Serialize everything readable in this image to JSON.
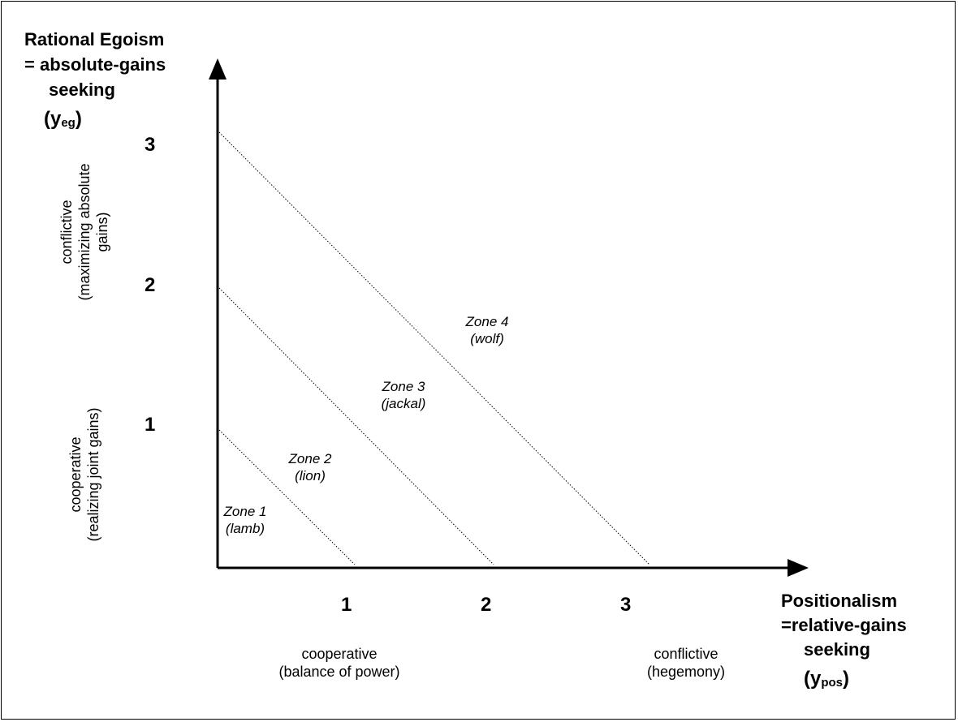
{
  "y_axis": {
    "title_lines": [
      "Rational Egoism",
      "= absolute-gains",
      "seeking"
    ],
    "symbol_main": "(y",
    "symbol_sub": "eg",
    "symbol_close": ")",
    "ticks": [
      "1",
      "2",
      "3"
    ],
    "lower_desc": [
      "cooperative",
      "(realizing joint gains)"
    ],
    "upper_desc": [
      "conflictive",
      "(maximizing absolute",
      "gains)"
    ]
  },
  "x_axis": {
    "title_lines": [
      "Positionalism",
      "=relative-gains",
      "seeking"
    ],
    "symbol_main": "(y",
    "symbol_sub": "pos",
    "symbol_close": ")",
    "ticks": [
      "1",
      "2",
      "3"
    ],
    "left_desc": [
      "cooperative",
      "(balance of power)"
    ],
    "right_desc": [
      "conflictive",
      "(hegemony)"
    ]
  },
  "zones": [
    {
      "name": "Zone 1",
      "animal": "(lamb)"
    },
    {
      "name": "Zone 2",
      "animal": "(lion)"
    },
    {
      "name": "Zone 3",
      "animal": "(jackal)"
    },
    {
      "name": "Zone 4",
      "animal": "(wolf)"
    }
  ],
  "colors": {
    "line": "#000000",
    "background": "#ffffff"
  }
}
